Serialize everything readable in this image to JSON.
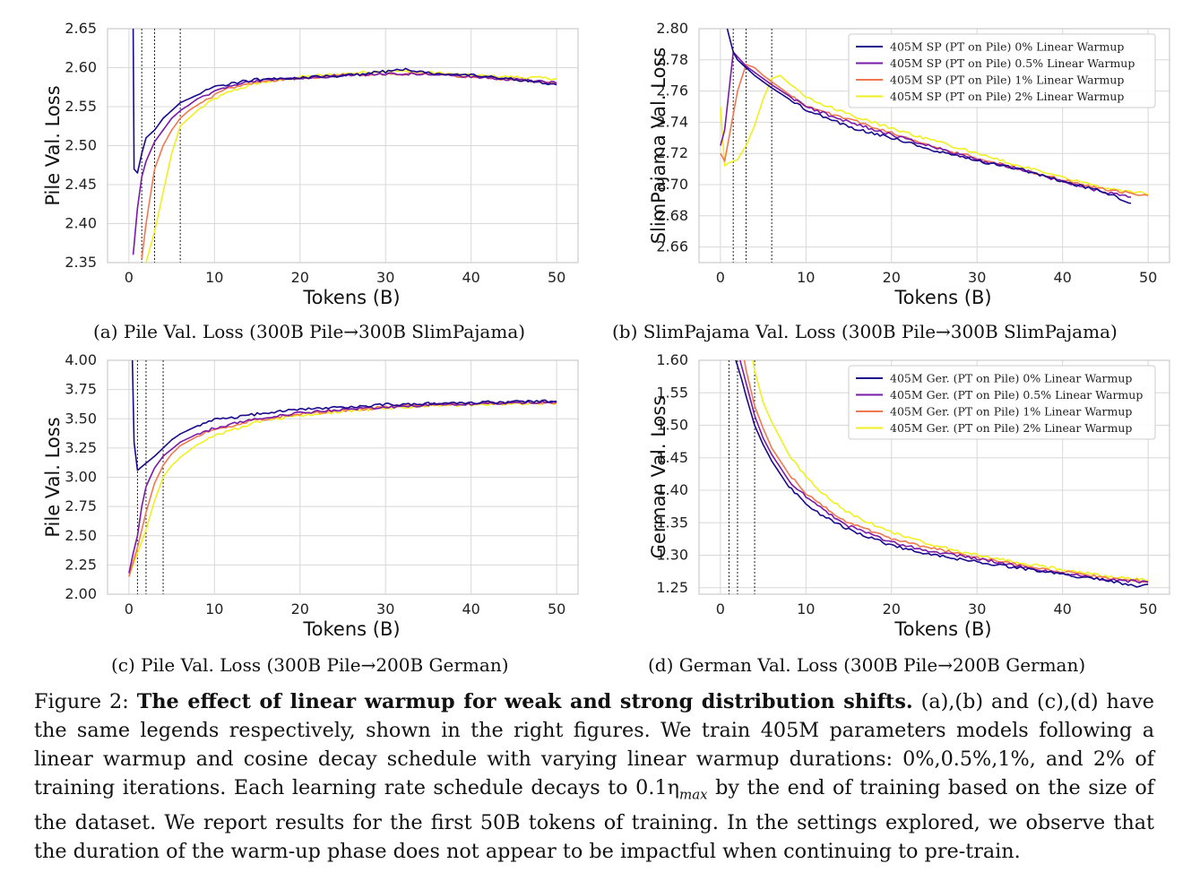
{
  "figure": {
    "label": "Figure 2:",
    "bold_title": "The effect of linear warmup for weak and strong distribution shifts.",
    "body": "(a),(b) and (c),(d) have the same legends respectively, shown in the right figures. We train 405M parameters models following a linear warmup and cosine decay schedule with varying linear warmup durations: 0%,0.5%,1%, and 2% of training iterations. Each learning rate schedule decays to 0.1η",
    "eta_sub": "max",
    "body_end": " by the end of training based on the size of the dataset. We report results for the first 50B tokens of training. In the settings explored, we observe that the duration of the warm-up phase does not appear to be impactful when continuing to pre-train."
  },
  "captions": {
    "a": "(a) Pile Val. Loss (300B Pile→300B SlimPajama)",
    "b": "(b) SlimPajama Val. Loss (300B Pile→300B SlimPajama)",
    "c": "(c) Pile Val. Loss (300B Pile→200B German)",
    "d": "(d) German Val. Loss (300B Pile→200B German)"
  },
  "colors": {
    "w0": "#1a0a8c",
    "w05": "#7a1aa8",
    "w1": "#f07850",
    "w2": "#f0f020",
    "grid": "#d8d8d8",
    "frame": "#cccccc"
  },
  "chart_data": [
    {
      "id": "a",
      "type": "line",
      "xlabel": "Tokens (B)",
      "ylabel": "Pile Val. Loss",
      "xlim": [
        -2.5,
        52.5
      ],
      "ylim": [
        2.35,
        2.65
      ],
      "xticks": [
        0,
        10,
        20,
        30,
        40,
        50
      ],
      "yticks": [
        2.35,
        2.4,
        2.45,
        2.5,
        2.55,
        2.6,
        2.65
      ],
      "ytick_labels": [
        "2.35",
        "2.40",
        "2.45",
        "2.50",
        "2.55",
        "2.60",
        "2.65"
      ],
      "vlines": [
        1.5,
        3,
        6
      ],
      "legend": null,
      "series": [
        {
          "color_key": "w0",
          "x": [
            0.5,
            0.6,
            1,
            1.5,
            2,
            3,
            4,
            5,
            6,
            7,
            8,
            10,
            12,
            15,
            20,
            25,
            30,
            32,
            35,
            40,
            45,
            50
          ],
          "y": [
            2.65,
            2.47,
            2.465,
            2.49,
            2.51,
            2.52,
            2.535,
            2.545,
            2.555,
            2.56,
            2.565,
            2.575,
            2.58,
            2.585,
            2.587,
            2.59,
            2.595,
            2.598,
            2.593,
            2.59,
            2.585,
            2.578
          ]
        },
        {
          "color_key": "w05",
          "x": [
            0.5,
            1,
            1.5,
            2,
            3,
            4,
            5,
            6,
            7,
            8,
            10,
            12,
            15,
            20,
            25,
            30,
            35,
            40,
            45,
            50
          ],
          "y": [
            2.36,
            2.42,
            2.46,
            2.48,
            2.505,
            2.52,
            2.535,
            2.545,
            2.552,
            2.56,
            2.57,
            2.578,
            2.583,
            2.587,
            2.59,
            2.592,
            2.592,
            2.588,
            2.585,
            2.58
          ]
        },
        {
          "color_key": "w1",
          "x": [
            1.5,
            2,
            3,
            4,
            5,
            6,
            7,
            8,
            10,
            12,
            15,
            20,
            25,
            30,
            35,
            40,
            45,
            50
          ],
          "y": [
            2.355,
            2.4,
            2.47,
            2.5,
            2.52,
            2.535,
            2.545,
            2.552,
            2.565,
            2.575,
            2.582,
            2.587,
            2.59,
            2.592,
            2.592,
            2.588,
            2.585,
            2.58
          ]
        },
        {
          "color_key": "w2",
          "x": [
            2,
            3,
            4,
            5,
            6,
            7,
            8,
            10,
            12,
            15,
            20,
            25,
            30,
            35,
            40,
            45,
            50
          ],
          "y": [
            2.35,
            2.39,
            2.44,
            2.49,
            2.525,
            2.535,
            2.545,
            2.56,
            2.57,
            2.58,
            2.588,
            2.592,
            2.596,
            2.594,
            2.59,
            2.588,
            2.586
          ]
        }
      ]
    },
    {
      "id": "b",
      "type": "line",
      "xlabel": "Tokens (B)",
      "ylabel": "SlimPajama Val. Loss",
      "xlim": [
        -2.5,
        52.5
      ],
      "ylim": [
        2.65,
        2.8
      ],
      "xticks": [
        0,
        10,
        20,
        30,
        40,
        50
      ],
      "yticks": [
        2.66,
        2.68,
        2.7,
        2.72,
        2.74,
        2.76,
        2.78,
        2.8
      ],
      "ytick_labels": [
        "2.66",
        "2.68",
        "2.70",
        "2.72",
        "2.74",
        "2.76",
        "2.78",
        "2.80"
      ],
      "vlines": [
        1.5,
        3,
        6
      ],
      "legend": [
        "405M SP (PT on Pile) 0% Linear Warmup",
        "405M SP (PT on Pile) 0.5% Linear Warmup",
        "405M SP (PT on Pile) 1% Linear Warmup",
        "405M SP (PT on Pile) 2% Linear Warmup"
      ],
      "series": [
        {
          "color_key": "w0",
          "x": [
            0.8,
            1.5,
            2,
            3,
            4,
            5,
            6,
            8,
            10,
            15,
            20,
            25,
            30,
            35,
            40,
            45,
            48
          ],
          "y": [
            2.8,
            2.785,
            2.78,
            2.775,
            2.77,
            2.766,
            2.762,
            2.755,
            2.748,
            2.737,
            2.73,
            2.722,
            2.715,
            2.71,
            2.702,
            2.695,
            2.688
          ]
        },
        {
          "color_key": "w05",
          "x": [
            0,
            0.5,
            1,
            1.5,
            2,
            3,
            4,
            5,
            6,
            8,
            10,
            15,
            20,
            25,
            30,
            35,
            40,
            45,
            48
          ],
          "y": [
            2.725,
            2.735,
            2.76,
            2.785,
            2.782,
            2.776,
            2.772,
            2.768,
            2.764,
            2.757,
            2.75,
            2.74,
            2.732,
            2.724,
            2.716,
            2.71,
            2.702,
            2.695,
            2.692
          ]
        },
        {
          "color_key": "w1",
          "x": [
            0,
            0.5,
            1,
            2,
            3,
            4,
            5,
            6,
            8,
            10,
            15,
            20,
            25,
            30,
            35,
            40,
            45,
            50
          ],
          "y": [
            2.72,
            2.715,
            2.73,
            2.76,
            2.777,
            2.775,
            2.77,
            2.766,
            2.758,
            2.75,
            2.742,
            2.733,
            2.724,
            2.717,
            2.71,
            2.703,
            2.697,
            2.693
          ]
        },
        {
          "color_key": "w2",
          "x": [
            0,
            0.5,
            1,
            2,
            3,
            4,
            5,
            6,
            7,
            8,
            10,
            15,
            20,
            25,
            30,
            35,
            40,
            45,
            50
          ],
          "y": [
            2.75,
            2.712,
            2.714,
            2.716,
            2.725,
            2.738,
            2.755,
            2.768,
            2.77,
            2.765,
            2.756,
            2.745,
            2.736,
            2.728,
            2.72,
            2.712,
            2.705,
            2.698,
            2.694
          ]
        }
      ]
    },
    {
      "id": "c",
      "type": "line",
      "xlabel": "Tokens (B)",
      "ylabel": "Pile Val. Loss",
      "xlim": [
        -2.5,
        52.5
      ],
      "ylim": [
        2.0,
        4.0
      ],
      "xticks": [
        0,
        10,
        20,
        30,
        40,
        50
      ],
      "yticks": [
        2.0,
        2.25,
        2.5,
        2.75,
        3.0,
        3.25,
        3.5,
        3.75,
        4.0
      ],
      "ytick_labels": [
        "2.00",
        "2.25",
        "2.50",
        "2.75",
        "3.00",
        "3.25",
        "3.50",
        "3.75",
        "4.00"
      ],
      "vlines": [
        1,
        2,
        4
      ],
      "legend": null,
      "series": [
        {
          "color_key": "w0",
          "x": [
            0.4,
            0.6,
            1,
            2,
            3,
            4,
            5,
            6,
            8,
            10,
            15,
            20,
            25,
            30,
            35,
            40,
            45,
            50
          ],
          "y": [
            4.0,
            3.3,
            3.06,
            3.12,
            3.18,
            3.25,
            3.32,
            3.37,
            3.44,
            3.49,
            3.54,
            3.58,
            3.6,
            3.62,
            3.63,
            3.64,
            3.645,
            3.65
          ]
        },
        {
          "color_key": "w05",
          "x": [
            0,
            0.5,
            1,
            1.5,
            2,
            3,
            4,
            5,
            6,
            8,
            10,
            15,
            20,
            25,
            30,
            35,
            40,
            45,
            50
          ],
          "y": [
            2.18,
            2.35,
            2.5,
            2.75,
            2.92,
            3.08,
            3.18,
            3.24,
            3.3,
            3.37,
            3.42,
            3.5,
            3.55,
            3.58,
            3.6,
            3.62,
            3.63,
            3.64,
            3.64
          ]
        },
        {
          "color_key": "w1",
          "x": [
            0,
            1,
            2,
            3,
            4,
            5,
            6,
            8,
            10,
            15,
            20,
            25,
            30,
            35,
            40,
            45,
            50
          ],
          "y": [
            2.15,
            2.4,
            2.7,
            2.95,
            3.1,
            3.2,
            3.27,
            3.35,
            3.41,
            3.49,
            3.54,
            3.57,
            3.6,
            3.62,
            3.63,
            3.635,
            3.64
          ]
        },
        {
          "color_key": "w2",
          "x": [
            0,
            1,
            2,
            3,
            4,
            5,
            6,
            8,
            10,
            15,
            20,
            25,
            30,
            35,
            40,
            45,
            50
          ],
          "y": [
            2.15,
            2.35,
            2.55,
            2.8,
            3.0,
            3.1,
            3.17,
            3.28,
            3.36,
            3.47,
            3.53,
            3.56,
            3.59,
            3.61,
            3.62,
            3.63,
            3.63
          ]
        }
      ]
    },
    {
      "id": "d",
      "type": "line",
      "xlabel": "Tokens (B)",
      "ylabel": "German Val. Loss",
      "xlim": [
        -2.5,
        52.5
      ],
      "ylim": [
        1.24,
        1.6
      ],
      "xticks": [
        0,
        10,
        20,
        30,
        40,
        50
      ],
      "yticks": [
        1.25,
        1.3,
        1.35,
        1.4,
        1.45,
        1.5,
        1.55,
        1.6
      ],
      "ytick_labels": [
        "1.25",
        "1.30",
        "1.35",
        "1.40",
        "1.45",
        "1.50",
        "1.55",
        "1.60"
      ],
      "vlines": [
        1,
        2,
        4
      ],
      "legend": [
        "405M Ger. (PT on Pile) 0% Linear Warmup",
        "405M Ger. (PT on Pile) 0.5% Linear Warmup",
        "405M Ger. (PT on Pile) 1% Linear Warmup",
        "405M Ger. (PT on Pile) 2% Linear Warmup"
      ],
      "series": [
        {
          "color_key": "w0",
          "x": [
            1.8,
            2.5,
            3,
            4,
            5,
            6,
            7,
            8,
            10,
            12,
            15,
            20,
            25,
            30,
            35,
            40,
            45,
            49,
            50
          ],
          "y": [
            1.6,
            1.57,
            1.545,
            1.5,
            1.47,
            1.445,
            1.425,
            1.405,
            1.38,
            1.36,
            1.34,
            1.315,
            1.3,
            1.29,
            1.28,
            1.27,
            1.262,
            1.25,
            1.255
          ]
        },
        {
          "color_key": "w05",
          "x": [
            2.3,
            3,
            4,
            5,
            6,
            7,
            8,
            10,
            12,
            15,
            20,
            25,
            30,
            35,
            40,
            45,
            50
          ],
          "y": [
            1.6,
            1.565,
            1.515,
            1.48,
            1.455,
            1.435,
            1.415,
            1.39,
            1.37,
            1.345,
            1.32,
            1.305,
            1.295,
            1.283,
            1.272,
            1.263,
            1.258
          ]
        },
        {
          "color_key": "w1",
          "x": [
            2.8,
            3,
            4,
            5,
            6,
            7,
            8,
            10,
            12,
            15,
            20,
            25,
            30,
            35,
            40,
            45,
            50
          ],
          "y": [
            1.6,
            1.585,
            1.53,
            1.495,
            1.465,
            1.445,
            1.425,
            1.395,
            1.375,
            1.35,
            1.325,
            1.31,
            1.297,
            1.285,
            1.275,
            1.265,
            1.26
          ]
        },
        {
          "color_key": "w2",
          "x": [
            3.8,
            4,
            5,
            6,
            7,
            8,
            10,
            12,
            15,
            20,
            25,
            30,
            35,
            40,
            45,
            50
          ],
          "y": [
            1.6,
            1.585,
            1.535,
            1.505,
            1.48,
            1.455,
            1.42,
            1.395,
            1.365,
            1.335,
            1.315,
            1.3,
            1.288,
            1.278,
            1.268,
            1.262
          ]
        }
      ]
    }
  ]
}
